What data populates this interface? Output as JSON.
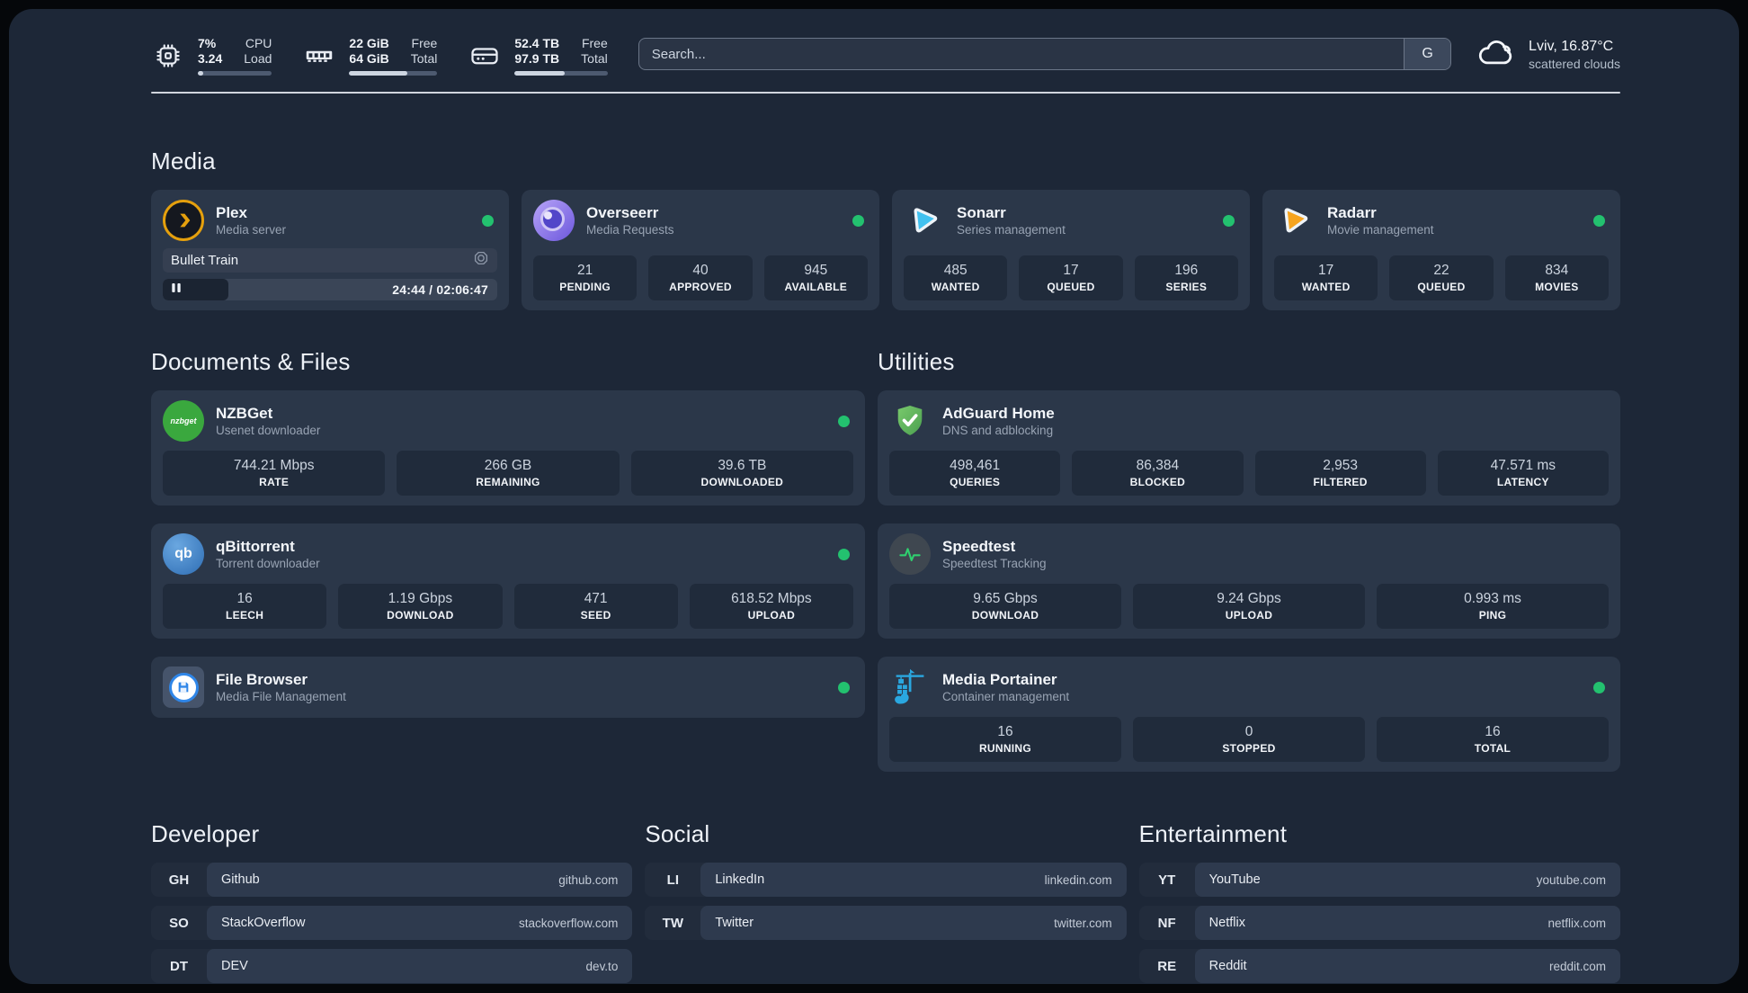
{
  "topbar": {
    "stats": [
      {
        "value1": "7%",
        "value2": "3.24",
        "label1": "CPU",
        "label2": "Load",
        "progress": 7
      },
      {
        "value1": "22 GiB",
        "value2": "64 GiB",
        "label1": "Free",
        "label2": "Total",
        "progress": 66
      },
      {
        "value1": "52.4 TB",
        "value2": "97.9 TB",
        "label1": "Free",
        "label2": "Total",
        "progress": 54
      }
    ],
    "search": {
      "placeholder": "Search...",
      "button_label": "G"
    },
    "weather": {
      "headline": "Lviv, 16.87°C",
      "condition": "scattered clouds"
    }
  },
  "media": {
    "heading": "Media",
    "plex": {
      "name": "Plex",
      "subtitle": "Media server",
      "now_playing": "Bullet Train",
      "time_display": "24:44 / 02:06:47",
      "progress_percent": 19.5
    },
    "cards": [
      {
        "name": "Overseerr",
        "subtitle": "Media Requests",
        "stats": [
          {
            "value": "21",
            "label": "PENDING"
          },
          {
            "value": "40",
            "label": "APPROVED"
          },
          {
            "value": "945",
            "label": "AVAILABLE"
          }
        ]
      },
      {
        "name": "Sonarr",
        "subtitle": "Series management",
        "stats": [
          {
            "value": "485",
            "label": "WANTED"
          },
          {
            "value": "17",
            "label": "QUEUED"
          },
          {
            "value": "196",
            "label": "SERIES"
          }
        ]
      },
      {
        "name": "Radarr",
        "subtitle": "Movie management",
        "stats": [
          {
            "value": "17",
            "label": "WANTED"
          },
          {
            "value": "22",
            "label": "QUEUED"
          },
          {
            "value": "834",
            "label": "MOVIES"
          }
        ]
      }
    ]
  },
  "documents": {
    "heading": "Documents & Files",
    "cards": [
      {
        "name": "NZBGet",
        "subtitle": "Usenet downloader",
        "stats": [
          {
            "value": "744.21 Mbps",
            "label": "RATE"
          },
          {
            "value": "266 GB",
            "label": "REMAINING"
          },
          {
            "value": "39.6 TB",
            "label": "DOWNLOADED"
          }
        ]
      },
      {
        "name": "qBittorrent",
        "subtitle": "Torrent downloader",
        "stats": [
          {
            "value": "16",
            "label": "LEECH"
          },
          {
            "value": "1.19 Gbps",
            "label": "DOWNLOAD"
          },
          {
            "value": "471",
            "label": "SEED"
          },
          {
            "value": "618.52 Mbps",
            "label": "UPLOAD"
          }
        ]
      },
      {
        "name": "File Browser",
        "subtitle": "Media File Management",
        "stats": []
      }
    ]
  },
  "utilities": {
    "heading": "Utilities",
    "cards": [
      {
        "name": "AdGuard Home",
        "subtitle": "DNS and adblocking",
        "stats": [
          {
            "value": "498,461",
            "label": "QUERIES"
          },
          {
            "value": "86,384",
            "label": "BLOCKED"
          },
          {
            "value": "2,953",
            "label": "FILTERED"
          },
          {
            "value": "47.571 ms",
            "label": "LATENCY"
          }
        ]
      },
      {
        "name": "Speedtest",
        "subtitle": "Speedtest Tracking",
        "stats": [
          {
            "value": "9.65 Gbps",
            "label": "DOWNLOAD"
          },
          {
            "value": "9.24 Gbps",
            "label": "UPLOAD"
          },
          {
            "value": "0.993 ms",
            "label": "PING"
          }
        ]
      },
      {
        "name": "Media Portainer",
        "subtitle": "Container management",
        "stats": [
          {
            "value": "16",
            "label": "RUNNING"
          },
          {
            "value": "0",
            "label": "STOPPED"
          },
          {
            "value": "16",
            "label": "TOTAL"
          }
        ]
      }
    ]
  },
  "bookmarks": [
    {
      "heading": "Developer",
      "items": [
        {
          "abbr": "GH",
          "name": "Github",
          "url": "github.com"
        },
        {
          "abbr": "SO",
          "name": "StackOverflow",
          "url": "stackoverflow.com"
        },
        {
          "abbr": "DT",
          "name": "DEV",
          "url": "dev.to"
        }
      ]
    },
    {
      "heading": "Social",
      "items": [
        {
          "abbr": "LI",
          "name": "LinkedIn",
          "url": "linkedin.com"
        },
        {
          "abbr": "TW",
          "name": "Twitter",
          "url": "twitter.com"
        }
      ]
    },
    {
      "heading": "Entertainment",
      "items": [
        {
          "abbr": "YT",
          "name": "YouTube",
          "url": "youtube.com"
        },
        {
          "abbr": "NF",
          "name": "Netflix",
          "url": "netflix.com"
        },
        {
          "abbr": "RE",
          "name": "Reddit",
          "url": "reddit.com"
        }
      ]
    }
  ],
  "colors": {
    "status_online": "#23c16f",
    "plex_amber": "#e5a00d"
  }
}
